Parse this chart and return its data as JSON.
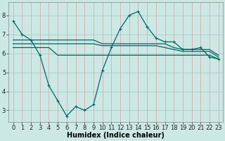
{
  "bg_color": "#cce8e4",
  "line_color": "#006666",
  "grid_color_v": "#d9a0a0",
  "grid_color_h": "#a0c8c4",
  "xlabel": "Humidex (Indice chaleur)",
  "xlabel_fontsize": 7,
  "tick_fontsize": 6,
  "ylim": [
    2.4,
    8.7
  ],
  "xlim": [
    -0.5,
    23.5
  ],
  "yticks": [
    3,
    4,
    5,
    6,
    7,
    8
  ],
  "xticks": [
    0,
    1,
    2,
    3,
    4,
    5,
    6,
    7,
    8,
    9,
    10,
    11,
    12,
    13,
    14,
    15,
    16,
    17,
    18,
    19,
    20,
    21,
    22,
    23
  ],
  "series_main": [
    7.7,
    7.0,
    6.7,
    5.9,
    4.3,
    3.5,
    2.7,
    3.2,
    3.0,
    3.3,
    5.1,
    6.3,
    7.3,
    8.0,
    8.2,
    7.4,
    6.8,
    6.6,
    6.6,
    6.2,
    6.2,
    6.3,
    5.8,
    5.7
  ],
  "flat_lines": [
    [
      6.7,
      6.7,
      6.7,
      6.7,
      6.7,
      6.7,
      6.7,
      6.7,
      6.7,
      6.7,
      6.5,
      6.5,
      6.5,
      6.5,
      6.5,
      6.5,
      6.5,
      6.5,
      6.3,
      6.2,
      6.2,
      6.2,
      6.2,
      5.9
    ],
    [
      6.5,
      6.5,
      6.5,
      6.5,
      6.5,
      6.5,
      6.5,
      6.5,
      6.5,
      6.5,
      6.4,
      6.4,
      6.4,
      6.4,
      6.4,
      6.4,
      6.4,
      6.3,
      6.2,
      6.1,
      6.1,
      6.1,
      6.1,
      5.8
    ],
    [
      6.3,
      6.3,
      6.3,
      6.3,
      6.3,
      5.9,
      5.9,
      5.9,
      5.9,
      5.9,
      5.9,
      5.9,
      5.9,
      5.9,
      5.9,
      5.9,
      5.9,
      5.9,
      5.9,
      5.9,
      5.9,
      5.9,
      5.9,
      5.7
    ]
  ]
}
